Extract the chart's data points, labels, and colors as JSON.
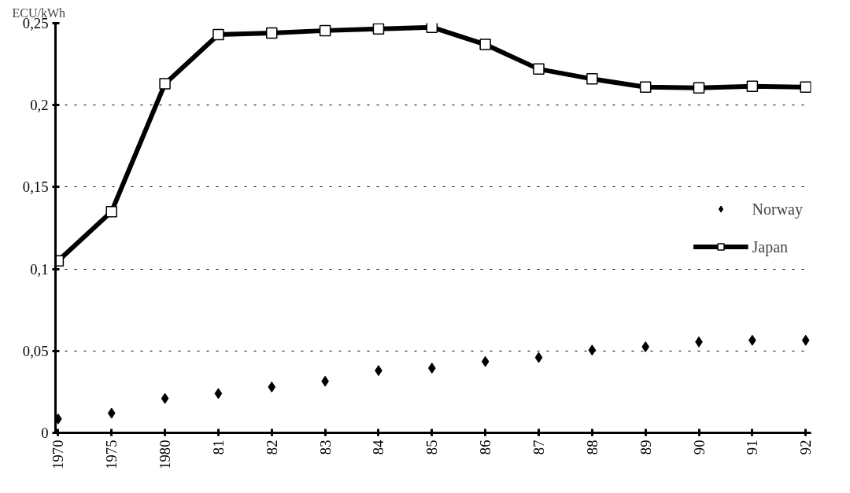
{
  "chart_data": {
    "type": "line",
    "ylabel": "ECU/kWh",
    "categories": [
      "1970",
      "1975",
      "1980",
      "81",
      "82",
      "83",
      "84",
      "85",
      "86",
      "87",
      "88",
      "89",
      "90",
      "91",
      "92"
    ],
    "series": [
      {
        "name": "Norway",
        "type": "scatter",
        "marker": "diamond",
        "color": "#000000",
        "values": [
          0.0085,
          0.012,
          0.021,
          0.024,
          0.028,
          0.0315,
          0.038,
          0.0395,
          0.0435,
          0.046,
          0.0505,
          0.0525,
          0.0555,
          0.0565,
          0.0565
        ]
      },
      {
        "name": "Japan",
        "marker": "square",
        "line_style": "solid",
        "color": "#000000",
        "values": [
          0.105,
          0.135,
          0.213,
          0.243,
          0.244,
          0.2455,
          0.2465,
          0.2475,
          0.237,
          0.222,
          0.216,
          0.211,
          0.2105,
          0.2115,
          0.211
        ]
      }
    ],
    "ylim": [
      0,
      0.25
    ],
    "yticks": [
      {
        "value": 0,
        "label": "0"
      },
      {
        "value": 0.05,
        "label": "0,05"
      },
      {
        "value": 0.1,
        "label": "0,1"
      },
      {
        "value": 0.15,
        "label": "0,15"
      },
      {
        "value": 0.2,
        "label": "0,2"
      },
      {
        "value": 0.25,
        "label": "0,25"
      }
    ],
    "grid": "y",
    "legend": "right"
  }
}
